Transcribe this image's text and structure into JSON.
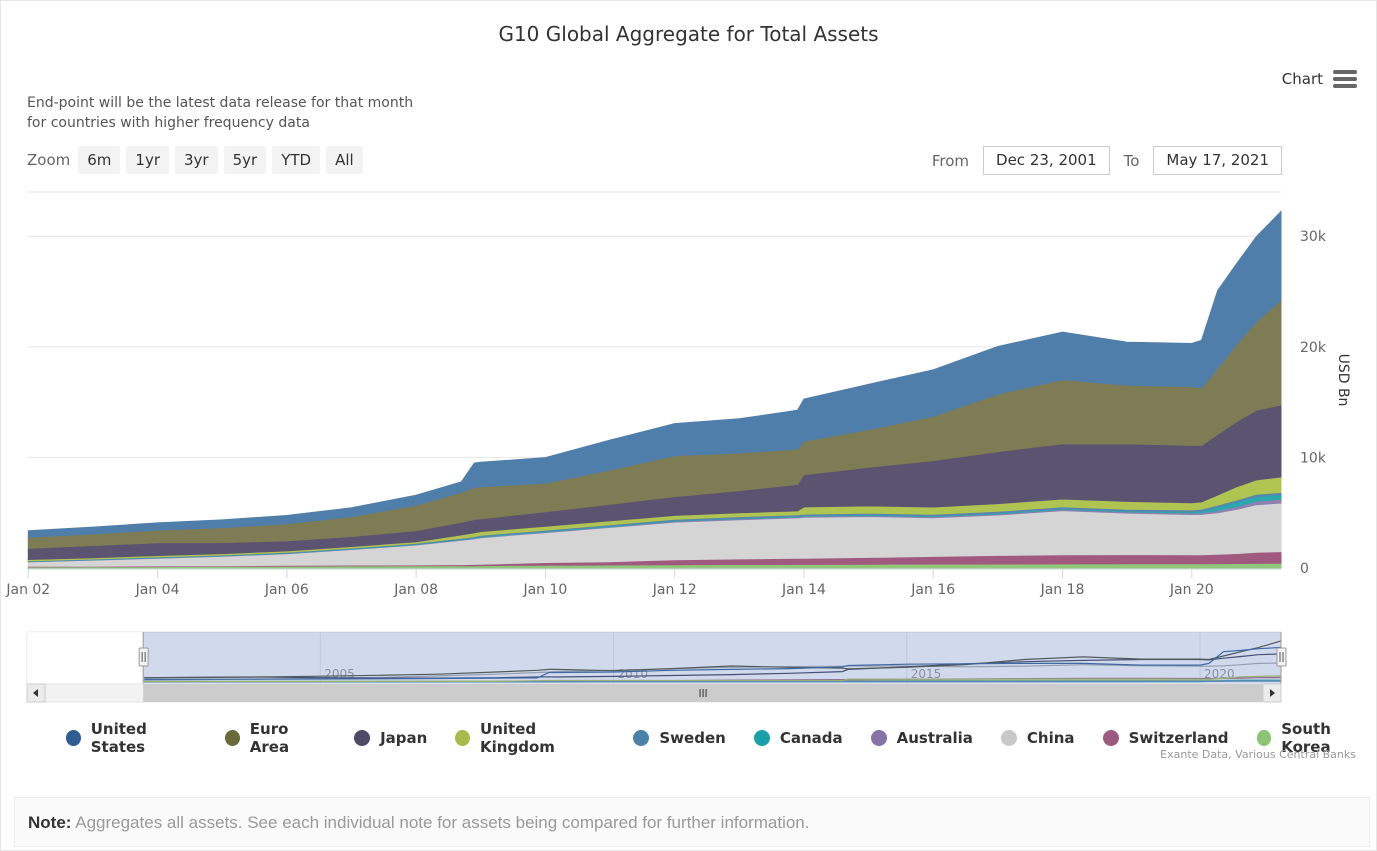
{
  "title": "G10 Global Aggregate for Total Assets",
  "subtitle_lines": [
    "End-point will be the latest data release for that month",
    "for countries with higher frequency data"
  ],
  "menu": {
    "label": "Chart",
    "icon": "hamburger-menu-icon"
  },
  "zoom": {
    "label": "Zoom",
    "buttons": [
      "6m",
      "1yr",
      "3yr",
      "5yr",
      "YTD",
      "All"
    ]
  },
  "range": {
    "from_label": "From",
    "from_value": "Dec 23, 2001",
    "to_label": "To",
    "to_value": "May 17, 2021"
  },
  "credits": "Exante Data, Various Central Banks",
  "note": {
    "label": "Note:",
    "text": " Aggregates all assets. See each individual note for assets being compared for further information."
  },
  "chart_data": {
    "type": "area",
    "stacked": true,
    "y_axis": {
      "title": "USD Bn",
      "position": "right",
      "range": [
        0,
        34000
      ],
      "ticks": [
        "0",
        "10k",
        "20k",
        "30k"
      ],
      "tick_values": [
        0,
        10000,
        20000,
        30000
      ]
    },
    "x_axis": {
      "range": [
        2001.98,
        2021.38
      ],
      "ticks": [
        "Jan 02",
        "Jan 04",
        "Jan 06",
        "Jan 08",
        "Jan 10",
        "Jan 12",
        "Jan 14",
        "Jan 16",
        "Jan 18",
        "Jan 20"
      ],
      "tick_values": [
        2002,
        2004,
        2006,
        2008,
        2010,
        2012,
        2014,
        2016,
        2018,
        2020
      ]
    },
    "navigator": {
      "ticks": [
        "2005",
        "2010",
        "2015",
        "2020"
      ],
      "tick_values": [
        2005,
        2010,
        2015,
        2020
      ],
      "selected_range": [
        2001.98,
        2021.38
      ],
      "full_range": [
        2000.0,
        2021.38
      ],
      "scrollbar_icon": "scroll-grip-icon"
    },
    "legend_position": "bottom",
    "x": [
      2002,
      2003,
      2004,
      2005,
      2006,
      2007,
      2008,
      2008.7,
      2008.9,
      2009,
      2010,
      2011,
      2012,
      2013,
      2013.9,
      2014,
      2015,
      2016,
      2017,
      2018,
      2019,
      2020,
      2020.15,
      2020.4,
      2020.7,
      2021,
      2021.38
    ],
    "series": [
      {
        "name": "South Korea",
        "color": "#90c77a",
        "values": [
          100,
          110,
          130,
          150,
          170,
          190,
          200,
          210,
          210,
          220,
          250,
          270,
          300,
          320,
          330,
          330,
          340,
          350,
          360,
          370,
          380,
          390,
          390,
          400,
          410,
          420,
          430
        ]
      },
      {
        "name": "Switzerland",
        "color": "#a0597f",
        "values": [
          50,
          50,
          60,
          60,
          70,
          80,
          80,
          100,
          120,
          120,
          250,
          300,
          450,
          500,
          550,
          560,
          620,
          700,
          780,
          820,
          830,
          800,
          810,
          850,
          900,
          1000,
          1050
        ]
      },
      {
        "name": "China",
        "color": "#d5d5d5",
        "values": [
          400,
          550,
          700,
          850,
          1050,
          1400,
          1800,
          2200,
          2300,
          2400,
          2700,
          3100,
          3400,
          3550,
          3650,
          3700,
          3700,
          3500,
          3650,
          4000,
          3750,
          3650,
          3650,
          3750,
          4000,
          4300,
          4400
        ]
      },
      {
        "name": "Australia",
        "color": "#8f80b0",
        "values": [
          20,
          20,
          25,
          25,
          30,
          30,
          35,
          45,
          50,
          55,
          60,
          65,
          70,
          75,
          80,
          85,
          90,
          95,
          100,
          105,
          110,
          130,
          150,
          200,
          250,
          320,
          350
        ]
      },
      {
        "name": "Canada",
        "color": "#2aa8b0",
        "values": [
          20,
          22,
          24,
          26,
          28,
          30,
          35,
          50,
          60,
          60,
          60,
          60,
          60,
          60,
          60,
          60,
          65,
          70,
          75,
          80,
          80,
          100,
          150,
          300,
          400,
          420,
          400
        ]
      },
      {
        "name": "Sweden",
        "color": "#5787ac",
        "values": [
          60,
          60,
          65,
          65,
          70,
          75,
          80,
          90,
          100,
          100,
          110,
          120,
          130,
          140,
          140,
          140,
          150,
          150,
          160,
          160,
          170,
          180,
          180,
          190,
          200,
          210,
          210
        ]
      },
      {
        "name": "United Kingdom",
        "color": "#b0c452",
        "values": [
          120,
          120,
          125,
          125,
          130,
          140,
          150,
          300,
          350,
          350,
          350,
          350,
          350,
          350,
          350,
          650,
          650,
          650,
          700,
          700,
          700,
          650,
          650,
          900,
          1200,
          1300,
          1400
        ]
      },
      {
        "name": "Japan",
        "color": "#5a5471",
        "values": [
          1000,
          1100,
          1150,
          1000,
          900,
          900,
          1000,
          1150,
          1200,
          1150,
          1300,
          1500,
          1700,
          2000,
          2400,
          2900,
          3500,
          4200,
          4700,
          5000,
          5200,
          5200,
          5100,
          5500,
          5900,
          6300,
          6500
        ]
      },
      {
        "name": "Euro Area",
        "color": "#7e7c55",
        "values": [
          1000,
          1050,
          1150,
          1350,
          1550,
          1800,
          2300,
          2700,
          2900,
          2900,
          2600,
          3100,
          3700,
          3400,
          3200,
          3050,
          3400,
          4000,
          5200,
          5800,
          5300,
          5300,
          5200,
          6000,
          7000,
          8000,
          9500
        ]
      },
      {
        "name": "United States",
        "color": "#507eaa",
        "values": [
          600,
          620,
          650,
          700,
          750,
          800,
          900,
          950,
          2200,
          2200,
          2300,
          2700,
          2900,
          3100,
          3500,
          3800,
          4100,
          4200,
          4300,
          4300,
          3900,
          3900,
          4300,
          7000,
          7300,
          7700,
          8000
        ]
      }
    ]
  }
}
